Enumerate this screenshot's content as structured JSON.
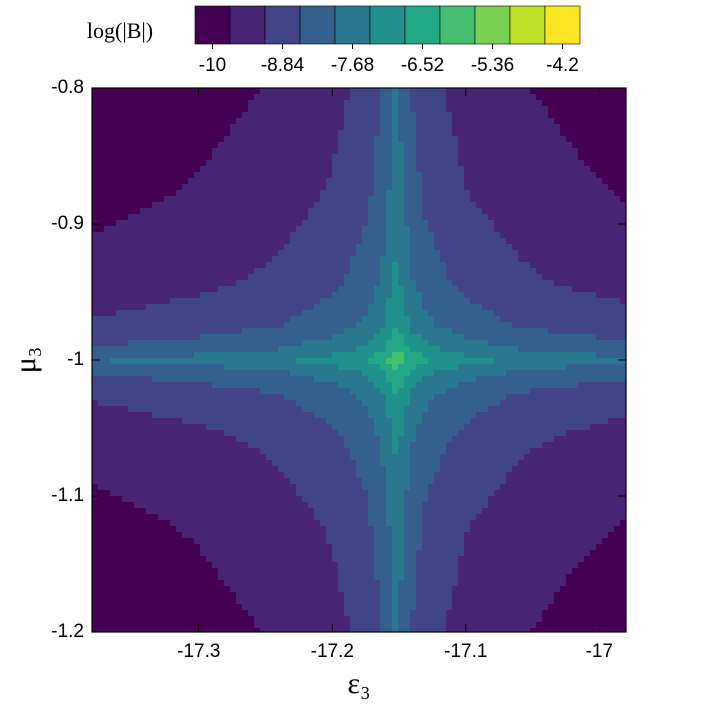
{
  "chart_data": {
    "type": "contour",
    "title": "log(|B|)",
    "x_label": "ε₃",
    "y_label": "μ₃",
    "x": [
      -17.38,
      -17.3,
      -17.24,
      -17.2,
      -17.175,
      -17.163,
      -17.152,
      -17.141,
      -17.13,
      -17.1,
      -17.06,
      -17.02,
      -16.98
    ],
    "y": [
      -1.2,
      -1.12,
      -1.06,
      -1.025,
      -1.008,
      -1.0,
      -0.992,
      -0.975,
      -0.94,
      -0.88,
      -0.8
    ],
    "z": [
      [
        -10.15,
        -9.92,
        -9.65,
        -9.33,
        -8.95,
        -8.56,
        -7.89,
        -8.56,
        -8.93,
        -9.37,
        -9.67,
        -9.86,
        -10.0
      ],
      [
        -9.88,
        -9.65,
        -9.38,
        -9.06,
        -8.68,
        -8.29,
        -7.62,
        -8.29,
        -8.66,
        -9.1,
        -9.4,
        -9.59,
        -9.73
      ],
      [
        -9.52,
        -9.29,
        -9.02,
        -8.7,
        -8.32,
        -7.93,
        -7.26,
        -7.93,
        -8.3,
        -8.74,
        -9.04,
        -9.23,
        -9.37
      ],
      [
        -9.06,
        -8.83,
        -8.56,
        -8.24,
        -7.86,
        -7.47,
        -6.8,
        -7.47,
        -7.84,
        -8.28,
        -8.58,
        -8.77,
        -8.91
      ],
      [
        -8.47,
        -8.24,
        -7.97,
        -7.65,
        -7.27,
        -6.88,
        -6.21,
        -6.88,
        -7.25,
        -7.69,
        -7.99,
        -8.18,
        -8.32
      ],
      [
        -7.96,
        -7.73,
        -7.46,
        -7.14,
        -6.76,
        -6.37,
        -5.7,
        -6.37,
        -6.74,
        -7.18,
        -7.48,
        -7.67,
        -7.81
      ],
      [
        -8.47,
        -8.24,
        -7.97,
        -7.65,
        -7.27,
        -6.88,
        -6.21,
        -6.88,
        -7.25,
        -7.69,
        -7.99,
        -8.18,
        -8.32
      ],
      [
        -9.06,
        -8.83,
        -8.56,
        -8.24,
        -7.86,
        -7.47,
        -6.8,
        -7.47,
        -7.84,
        -8.28,
        -8.58,
        -8.77,
        -8.91
      ],
      [
        -9.52,
        -9.29,
        -9.02,
        -8.7,
        -8.32,
        -7.93,
        -7.26,
        -7.93,
        -8.3,
        -8.74,
        -9.04,
        -9.23,
        -9.37
      ],
      [
        -9.88,
        -9.65,
        -9.38,
        -9.06,
        -8.68,
        -8.29,
        -7.62,
        -8.29,
        -8.66,
        -9.1,
        -9.4,
        -9.59,
        -9.73
      ],
      [
        -10.15,
        -9.92,
        -9.65,
        -9.33,
        -8.95,
        -8.56,
        -7.89,
        -8.56,
        -8.93,
        -9.37,
        -9.67,
        -9.86,
        -10.0
      ]
    ],
    "xlim": [
      -17.38,
      -16.98
    ],
    "xticks": [
      -17.3,
      -17.2,
      -17.1,
      -17
    ],
    "ylim": [
      -1.2,
      -0.8
    ],
    "yticks": [
      -1.2,
      -1.1,
      -1,
      -0.9,
      -0.8
    ],
    "levels": [
      -10.29,
      -9.71,
      -9.13,
      -8.55,
      -7.97,
      -7.39,
      -6.81,
      -6.23,
      -5.65,
      -5.07,
      -4.49,
      -3.91
    ],
    "colors": [
      "#440154",
      "#482475",
      "#414487",
      "#355f8d",
      "#2a788e",
      "#21918c",
      "#22a884",
      "#44bf70",
      "#7ad151",
      "#bddf26",
      "#fde725"
    ],
    "colorbar_ticks": [
      -10,
      -8.84,
      -7.68,
      -6.52,
      -5.36,
      -4.2
    ]
  }
}
